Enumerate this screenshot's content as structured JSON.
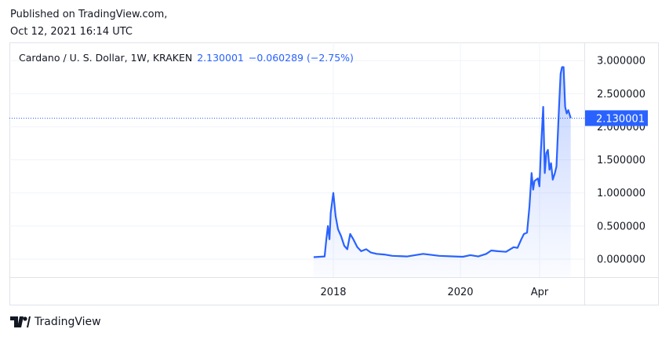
{
  "header": {
    "published": "Published on TradingView.com,",
    "timestamp": "Oct 12, 2021 16:14 UTC"
  },
  "legend": {
    "symbol": "Cardano / U. S. Dollar, 1W, KRAKEN",
    "last": "2.130001",
    "change": "−0.060289 (−2.75%)"
  },
  "brand": {
    "name": "TradingView"
  },
  "colors": {
    "line": "#2962ff",
    "price_label_bg": "#2962ff",
    "grid": "#f0f3fa"
  },
  "chart_data": {
    "type": "area",
    "title": "Cardano / U. S. Dollar, 1W, KRAKEN",
    "ylim": [
      -0.25,
      3.25
    ],
    "y_ticks": [
      "0.000000",
      "0.500000",
      "1.000000",
      "1.500000",
      "2.000000",
      "2.500000",
      "3.000000"
    ],
    "x_ticks": [
      {
        "label": "2018",
        "date": "2018-01-01"
      },
      {
        "label": "2020",
        "date": "2020-01-01"
      },
      {
        "label": "Apr",
        "date": "2021-04-01"
      }
    ],
    "last_price_label": "2.130001",
    "grid": true,
    "points": [
      [
        "2017-09-10",
        0.03
      ],
      [
        "2017-11-12",
        0.04
      ],
      [
        "2017-11-22",
        0.3
      ],
      [
        "2017-12-01",
        0.5
      ],
      [
        "2017-12-10",
        0.3
      ],
      [
        "2017-12-17",
        0.7
      ],
      [
        "2018-01-01",
        1.0
      ],
      [
        "2018-01-14",
        0.65
      ],
      [
        "2018-01-28",
        0.45
      ],
      [
        "2018-02-14",
        0.35
      ],
      [
        "2018-03-05",
        0.2
      ],
      [
        "2018-03-22",
        0.15
      ],
      [
        "2018-04-08",
        0.38
      ],
      [
        "2018-04-26",
        0.3
      ],
      [
        "2018-05-19",
        0.18
      ],
      [
        "2018-06-10",
        0.12
      ],
      [
        "2018-07-09",
        0.15
      ],
      [
        "2018-08-05",
        0.1
      ],
      [
        "2018-09-07",
        0.08
      ],
      [
        "2018-10-20",
        0.07
      ],
      [
        "2018-12-06",
        0.05
      ],
      [
        "2019-03-02",
        0.04
      ],
      [
        "2019-06-01",
        0.08
      ],
      [
        "2019-09-01",
        0.05
      ],
      [
        "2019-11-29",
        0.04
      ],
      [
        "2020-01-15",
        0.035
      ],
      [
        "2020-02-28",
        0.06
      ],
      [
        "2020-04-13",
        0.04
      ],
      [
        "2020-05-29",
        0.08
      ],
      [
        "2020-06-27",
        0.13
      ],
      [
        "2020-08-03",
        0.12
      ],
      [
        "2020-09-20",
        0.11
      ],
      [
        "2020-11-03",
        0.18
      ],
      [
        "2020-11-25",
        0.17
      ],
      [
        "2020-12-17",
        0.3
      ],
      [
        "2021-01-01",
        0.38
      ],
      [
        "2021-01-19",
        0.4
      ],
      [
        "2021-02-02",
        0.8
      ],
      [
        "2021-02-14",
        1.3
      ],
      [
        "2021-02-23",
        1.05
      ],
      [
        "2021-03-03",
        1.18
      ],
      [
        "2021-03-22",
        1.22
      ],
      [
        "2021-03-31",
        1.1
      ],
      [
        "2021-04-08",
        1.6
      ],
      [
        "2021-04-22",
        2.3
      ],
      [
        "2021-05-01",
        1.3
      ],
      [
        "2021-05-10",
        1.6
      ],
      [
        "2021-05-19",
        1.65
      ],
      [
        "2021-05-28",
        1.35
      ],
      [
        "2021-06-06",
        1.45
      ],
      [
        "2021-06-16",
        1.2
      ],
      [
        "2021-06-28",
        1.3
      ],
      [
        "2021-07-07",
        1.4
      ],
      [
        "2021-07-22",
        2.3
      ],
      [
        "2021-07-31",
        2.8
      ],
      [
        "2021-08-08",
        2.9
      ],
      [
        "2021-08-17",
        2.9
      ],
      [
        "2021-08-26",
        2.3
      ],
      [
        "2021-09-04",
        2.2
      ],
      [
        "2021-09-13",
        2.25
      ],
      [
        "2021-09-27",
        2.13
      ]
    ]
  }
}
